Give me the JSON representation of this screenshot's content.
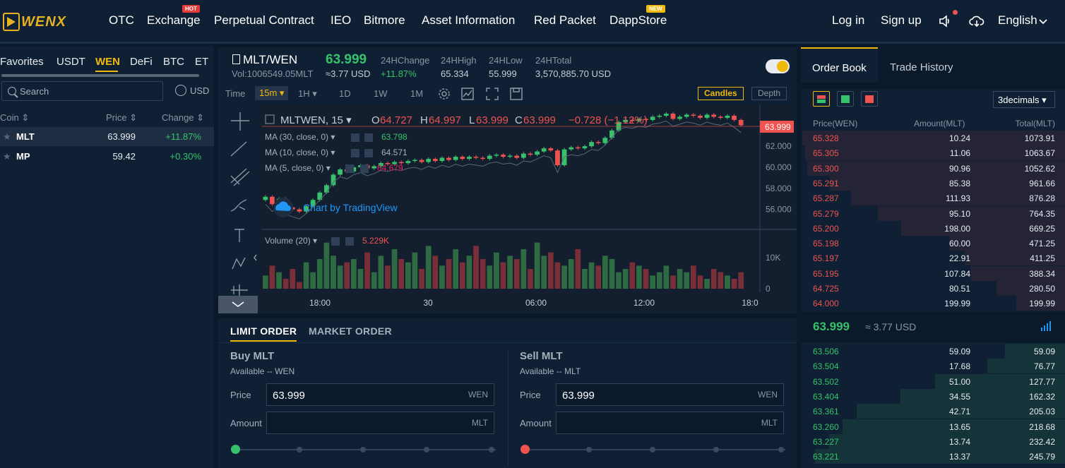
{
  "nav": {
    "brand": "WENX",
    "items": [
      "OTC",
      "Exchange",
      "Perpetual Contract",
      "IEO",
      "Bitmore",
      "Asset Information",
      "Red Packet",
      "DappStore"
    ],
    "hot": "HOT",
    "new": "NEW",
    "login": "Log in",
    "signup": "Sign up",
    "language": "English"
  },
  "markets": {
    "tabs": [
      "Favorites",
      "USDT",
      "WEN",
      "DeFi",
      "BTC",
      "ET"
    ],
    "active": "WEN",
    "search_placeholder": "Search",
    "usd": "USD",
    "col_coin": "Coin",
    "col_price": "Price",
    "col_change": "Change",
    "rows": [
      {
        "coin": "MLT",
        "price": "63.999",
        "change": "+11.87%"
      },
      {
        "coin": "MP",
        "price": "59.42",
        "change": "+0.30%"
      }
    ]
  },
  "ticker": {
    "pair": "MLT/WEN",
    "volume": "Vol:1006549.05MLT",
    "last": "63.999",
    "last_usd": "≈3.77 USD",
    "stats": [
      {
        "label": "24HChange",
        "value": "+11.87%"
      },
      {
        "label": "24HHigh",
        "value": "65.334"
      },
      {
        "label": "24HLow",
        "value": "55.999"
      },
      {
        "label": "24HTotal",
        "value": "3,570,885.70 USD"
      }
    ]
  },
  "toolbar": {
    "time": "Time",
    "intervals": [
      "15m",
      "1H",
      "1D",
      "1W",
      "1M"
    ],
    "active": "15m",
    "candles": "Candles",
    "depth": "Depth"
  },
  "chart_data": {
    "type": "candlestick",
    "symbol": "MLTWEN, 15",
    "ohlc": {
      "o": "64.727",
      "h": "64.997",
      "l": "63.999",
      "c": "63.999",
      "chg": "−0.728 (−1.12%)"
    },
    "ma": [
      {
        "label": "MA (30, close, 0)",
        "value": "63.798",
        "color": "#36c26a"
      },
      {
        "label": "MA (10, close, 0)",
        "value": "64.571",
        "color": "#a7b0bd"
      },
      {
        "label": "MA (5, close, 0)",
        "value": "64.679",
        "color": "#e91e63"
      }
    ],
    "watermark": "Chart by TradingView",
    "volume_label": "Volume (20)",
    "volume_value": "5.229K",
    "price_ticks": [
      "62.000",
      "60.000",
      "58.000",
      "56.000"
    ],
    "price_ylim": [
      54.5,
      65.5
    ],
    "last_price_tag": "63.999",
    "vol_ticks": [
      "10K",
      "0"
    ],
    "x_ticks": [
      "18:00",
      "30",
      "06:00",
      "12:00",
      "18:0"
    ],
    "closes": [
      57.2,
      56.5,
      57.0,
      56.2,
      56.0,
      55.8,
      56.3,
      56.9,
      57.6,
      58.3,
      59.3,
      59.8,
      59.6,
      60.0,
      60.2,
      59.9,
      60.1,
      60.4,
      60.3,
      60.5,
      60.4,
      60.6,
      60.7,
      60.5,
      60.8,
      60.6,
      60.9,
      60.7,
      61.0,
      60.8,
      61.0,
      60.9,
      60.8,
      61.1,
      61.2,
      61.0,
      61.1,
      60.9,
      61.3,
      61.2,
      61.5,
      61.8,
      61.6,
      60.2,
      61.7,
      61.9,
      61.8,
      62.0,
      62.4,
      62.3,
      62.8,
      63.5,
      64.3,
      64.5,
      64.4,
      64.6,
      64.5,
      64.8,
      64.9,
      65.1,
      64.6,
      64.8,
      65.0,
      64.9,
      64.7,
      65.0,
      64.8,
      64.7,
      64.9,
      64.5,
      64.0
    ],
    "volumes": [
      4,
      7,
      5,
      3,
      6,
      2,
      8,
      5,
      9,
      14,
      10,
      7,
      8,
      9,
      6,
      11,
      5,
      10,
      7,
      12,
      9,
      8,
      11,
      6,
      13,
      10,
      7,
      9,
      12,
      8,
      10,
      13,
      9,
      7,
      11,
      8,
      10,
      9,
      12,
      6,
      14,
      10,
      11,
      8,
      7,
      9,
      12,
      6,
      8,
      7,
      10,
      9,
      5,
      6,
      8,
      7,
      6,
      4,
      5,
      7,
      4,
      6,
      5,
      7,
      4,
      3,
      6,
      5,
      4,
      3,
      5
    ]
  },
  "order": {
    "tab_limit": "LIMIT ORDER",
    "tab_market": "MARKET ORDER",
    "buy": {
      "title": "Buy MLT",
      "available": "Available -- WEN",
      "price_label": "Price",
      "price": "63.999",
      "price_unit": "WEN",
      "amount_label": "Amount",
      "amount_unit": "MLT"
    },
    "sell": {
      "title": "Sell MLT",
      "available": "Available -- MLT",
      "price_label": "Price",
      "price": "63.999",
      "price_unit": "WEN",
      "amount_label": "Amount",
      "amount_unit": "MLT"
    }
  },
  "book": {
    "tab_book": "Order Book",
    "tab_history": "Trade History",
    "decimals": "3decimals",
    "h_price": "Price(WEN)",
    "h_amount": "Amount(MLT)",
    "h_total": "Total(MLT)",
    "asks": [
      [
        "65.328",
        "10.24",
        "1073.91"
      ],
      [
        "65.305",
        "11.06",
        "1063.67"
      ],
      [
        "65.300",
        "90.96",
        "1052.62"
      ],
      [
        "65.291",
        "85.38",
        "961.66"
      ],
      [
        "65.287",
        "111.93",
        "876.28"
      ],
      [
        "65.279",
        "95.10",
        "764.35"
      ],
      [
        "65.200",
        "198.00",
        "669.25"
      ],
      [
        "65.198",
        "60.00",
        "471.25"
      ],
      [
        "65.197",
        "22.91",
        "411.25"
      ],
      [
        "65.195",
        "107.84",
        "388.34"
      ],
      [
        "64.725",
        "80.51",
        "280.50"
      ],
      [
        "64.000",
        "199.99",
        "199.99"
      ]
    ],
    "mid_price": "63.999",
    "mid_usd": "≈ 3.77 USD",
    "bids": [
      [
        "63.506",
        "59.09",
        "59.09"
      ],
      [
        "63.504",
        "17.68",
        "76.77"
      ],
      [
        "63.502",
        "51.00",
        "127.77"
      ],
      [
        "63.404",
        "34.55",
        "162.32"
      ],
      [
        "63.361",
        "42.71",
        "205.03"
      ],
      [
        "63.260",
        "13.65",
        "218.68"
      ],
      [
        "63.227",
        "13.74",
        "232.42"
      ],
      [
        "63.221",
        "13.37",
        "245.79"
      ]
    ]
  },
  "colors": {
    "up": "#36c26a",
    "down": "#ef5350",
    "accent": "#f0b90b"
  }
}
